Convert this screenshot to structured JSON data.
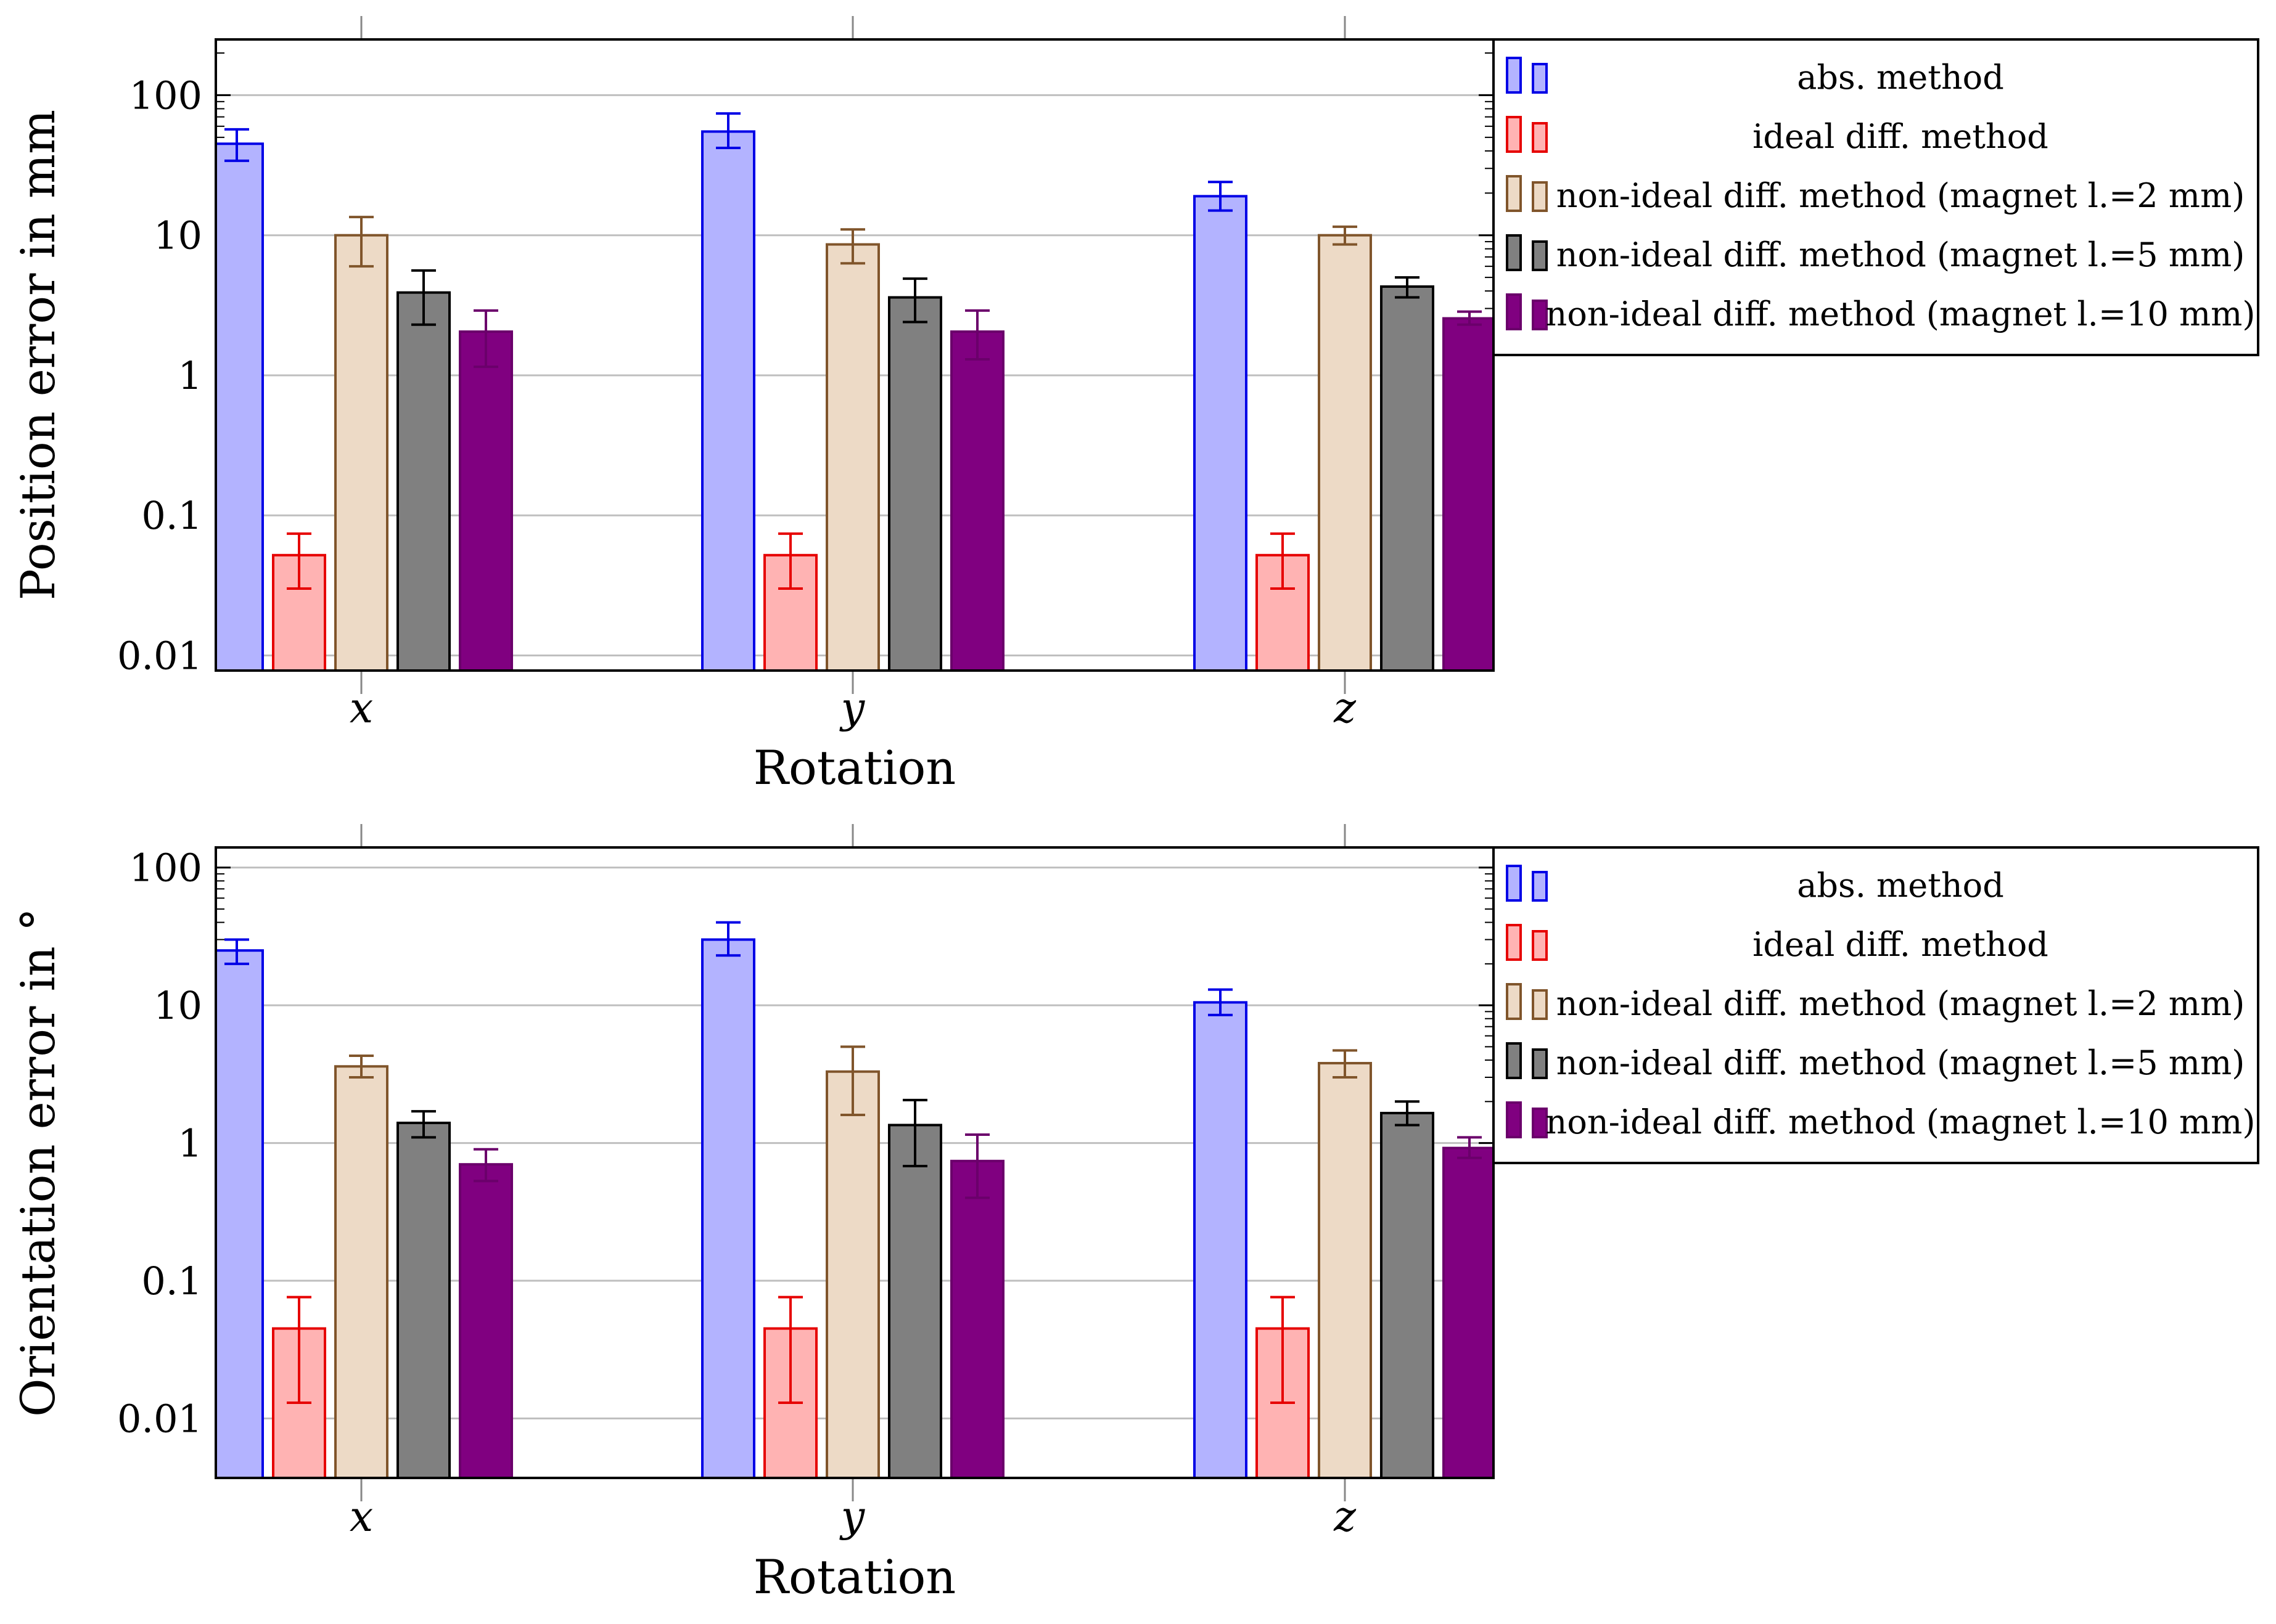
{
  "colors": {
    "abs": {
      "fill": "#b3b3ff",
      "stroke": "#0000e6"
    },
    "ideal": {
      "fill": "#ffb3b3",
      "stroke": "#e60000"
    },
    "ni2": {
      "fill": "#eddac6",
      "stroke": "#80552b"
    },
    "ni5": {
      "fill": "#808080",
      "stroke": "#000000"
    },
    "ni10": {
      "fill": "#800080",
      "stroke": "#6b006b"
    },
    "grid": "#bfbfbf"
  },
  "chart_data": [
    {
      "type": "bar",
      "yscale": "log",
      "ylabel": "Position error in mm",
      "xlabel": "Rotation",
      "categories": [
        "x",
        "y",
        "z"
      ],
      "ylim": [
        0.0078,
        250
      ],
      "yticks": [
        0.01,
        0.1,
        1,
        10,
        100
      ],
      "ytick_labels": [
        "0.01",
        "0.1",
        "1",
        "10",
        "100"
      ],
      "grid": true,
      "legend": "outside-right",
      "series": [
        {
          "key": "abs",
          "name": "abs. method",
          "values": [
            45,
            55,
            19
          ],
          "err_low": [
            34,
            42,
            15
          ],
          "err_high": [
            57,
            74,
            24
          ]
        },
        {
          "key": "ideal",
          "name": "ideal diff. method",
          "values": [
            0.052,
            0.052,
            0.052
          ],
          "err_low": [
            0.03,
            0.03,
            0.03
          ],
          "err_high": [
            0.074,
            0.074,
            0.074
          ]
        },
        {
          "key": "ni2",
          "name": "non-ideal diff. method (magnet l.=2 mm)",
          "values": [
            10,
            8.6,
            10
          ],
          "err_low": [
            6,
            6.3,
            8.6
          ],
          "err_high": [
            13.5,
            11,
            11.5
          ]
        },
        {
          "key": "ni5",
          "name": "non-ideal diff. method (magnet l.=5 mm)",
          "values": [
            3.9,
            3.6,
            4.3
          ],
          "err_low": [
            2.3,
            2.4,
            3.6
          ],
          "err_high": [
            5.6,
            4.9,
            5.0
          ]
        },
        {
          "key": "ni10",
          "name": "non-ideal diff. method (magnet l.=10 mm)",
          "values": [
            2.05,
            2.05,
            2.55
          ],
          "err_low": [
            1.15,
            1.3,
            2.3
          ],
          "err_high": [
            2.9,
            2.9,
            2.85
          ]
        }
      ]
    },
    {
      "type": "bar",
      "yscale": "log",
      "ylabel": "Orientation error in °",
      "xlabel": "Rotation",
      "categories": [
        "x",
        "y",
        "z"
      ],
      "ylim": [
        0.0037,
        140
      ],
      "yticks": [
        0.01,
        0.1,
        1,
        10,
        100
      ],
      "ytick_labels": [
        "0.01",
        "0.1",
        "1",
        "10",
        "100"
      ],
      "grid": true,
      "legend": "outside-right",
      "series": [
        {
          "key": "abs",
          "name": "abs. method",
          "values": [
            25,
            30,
            10.5
          ],
          "err_low": [
            20,
            23,
            8.5
          ],
          "err_high": [
            30,
            40,
            13
          ]
        },
        {
          "key": "ideal",
          "name": "ideal diff. method",
          "values": [
            0.045,
            0.045,
            0.045
          ],
          "err_low": [
            0.013,
            0.013,
            0.013
          ],
          "err_high": [
            0.076,
            0.076,
            0.076
          ]
        },
        {
          "key": "ni2",
          "name": "non-ideal diff. method (magnet l.=2 mm)",
          "values": [
            3.6,
            3.3,
            3.8
          ],
          "err_low": [
            3.0,
            1.6,
            3.0
          ],
          "err_high": [
            4.3,
            5.0,
            4.7
          ]
        },
        {
          "key": "ni5",
          "name": "non-ideal diff. method (magnet l.=5 mm)",
          "values": [
            1.4,
            1.35,
            1.65
          ],
          "err_low": [
            1.1,
            0.68,
            1.35
          ],
          "err_high": [
            1.7,
            2.05,
            2.0
          ]
        },
        {
          "key": "ni10",
          "name": "non-ideal diff. method (magnet l.=10 mm)",
          "values": [
            0.7,
            0.74,
            0.92
          ],
          "err_low": [
            0.53,
            0.4,
            0.78
          ],
          "err_high": [
            0.9,
            1.15,
            1.1
          ]
        }
      ]
    }
  ]
}
